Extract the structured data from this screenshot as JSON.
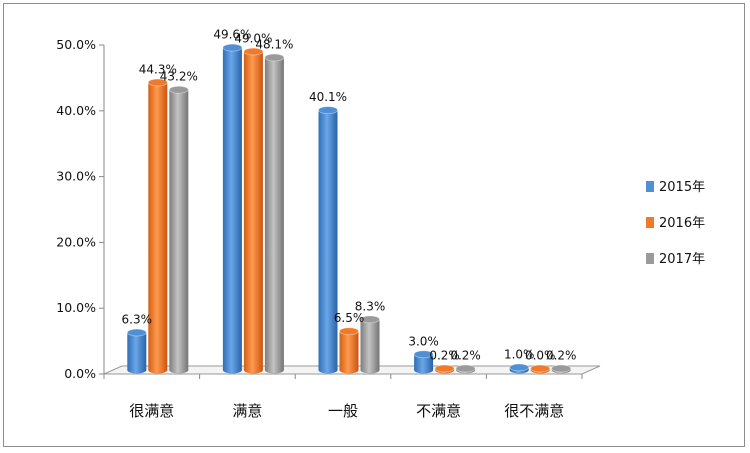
{
  "chart_data": {
    "type": "bar",
    "title": "",
    "xlabel": "",
    "ylabel": "",
    "categories": [
      "很满意",
      "满意",
      "一般",
      "不满意",
      "很不满意"
    ],
    "series": [
      {
        "name": "2015年",
        "color": "#4f8fd6",
        "values": [
          6.3,
          49.6,
          40.1,
          3.0,
          1.0
        ],
        "labels": [
          "6.3%",
          "49.6%",
          "40.1%",
          "3.0%",
          "1.0%"
        ]
      },
      {
        "name": "2016年",
        "color": "#f07a2c",
        "values": [
          44.3,
          49.0,
          6.5,
          0.2,
          0.0
        ],
        "labels": [
          "44.3%",
          "49.0%",
          "6.5%",
          "0.2%",
          "0.0%"
        ]
      },
      {
        "name": "2017年",
        "color": "#9a9a9a",
        "values": [
          43.2,
          48.1,
          8.3,
          0.2,
          0.2
        ],
        "labels": [
          "43.2%",
          "48.1%",
          "8.3%",
          "0.2%",
          "0.2%"
        ]
      }
    ],
    "ylim": [
      0,
      50
    ],
    "yticks": [
      0,
      10,
      20,
      30,
      40,
      50
    ],
    "ytick_labels": [
      "0.0%",
      "10.0%",
      "20.0%",
      "30.0%",
      "40.0%",
      "50.0%"
    ],
    "legend_position": "right",
    "grid": false
  }
}
